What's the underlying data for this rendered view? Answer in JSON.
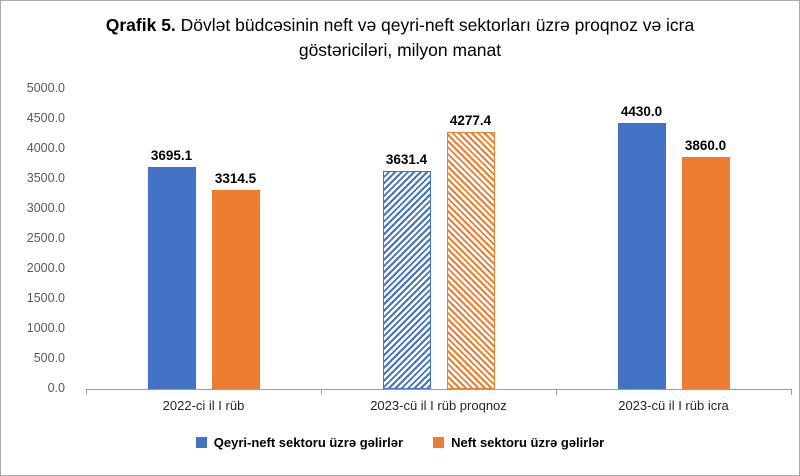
{
  "title": {
    "prefix": "Qrafik 5.",
    "rest": " Dövlət büdcəsinin neft və qeyri-neft sektorları üzrə proqnoz və icra göstəriciləri, milyon manat"
  },
  "chart_data": {
    "type": "bar",
    "title": "Qrafik 5. Dövlət büdcəsinin neft və qeyri-neft sektorları üzrə proqnoz və icra göstəriciləri, milyon manat",
    "categories": [
      "2022-ci il I rüb",
      "2023-cü il I rüb proqnoz",
      "2023-cü il I rüb icra"
    ],
    "series": [
      {
        "name": "Qeyri-neft sektoru üzrə gəlirlər",
        "color": "#4472C4",
        "values": [
          3695.1,
          3631.4,
          4430.0
        ]
      },
      {
        "name": "Neft sektoru üzrə gəlirlər",
        "color": "#ED7D31",
        "values": [
          3314.5,
          4277.4,
          3860.0
        ]
      }
    ],
    "value_labels": [
      [
        "3695.1",
        "3314.5"
      ],
      [
        "3631.4",
        "4277.4"
      ],
      [
        "4430.0",
        "3860.0"
      ]
    ],
    "hatched_category_index": 1,
    "ylim": [
      0,
      5000
    ],
    "ytick_step": 500,
    "yticks": [
      "5000.0",
      "4500.0",
      "4000.0",
      "3500.0",
      "3000.0",
      "2500.0",
      "2000.0",
      "1500.0",
      "1000.0",
      "500.0",
      "0.0"
    ],
    "grid": false,
    "legend_position": "bottom"
  }
}
